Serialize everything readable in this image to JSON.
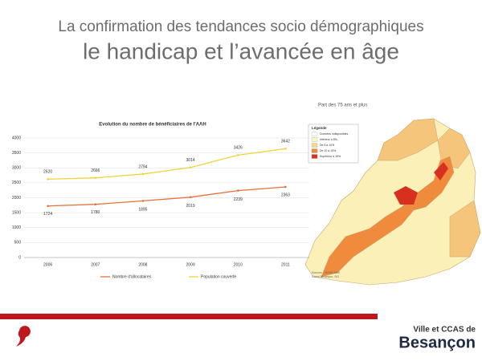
{
  "header": {
    "title": "La confirmation des tendances socio démographiques",
    "subtitle": "le handicap et l’avancée en âge"
  },
  "chart_data": {
    "type": "line",
    "title": "Evolution du nombre de bénéficiaires de l'AAH",
    "categories": [
      "2006",
      "2007",
      "2008",
      "2009",
      "2010",
      "2011"
    ],
    "series": [
      {
        "name": "Nombre d'allocataires",
        "color": "#e8703a",
        "values": [
          1724,
          1780,
          1895,
          2019,
          2239,
          2363
        ]
      },
      {
        "name": "Population couverte",
        "color": "#f2d33a",
        "values": [
          2620,
          2666,
          2794,
          3014,
          3426,
          3642
        ]
      }
    ],
    "ylim": [
      0,
      4000
    ],
    "yticks": [
      0,
      500,
      1000,
      1500,
      2000,
      2500,
      3000,
      3500,
      4000
    ],
    "grid": true
  },
  "map": {
    "title": "Part des 75 ans et plus",
    "legend_title": "Légende",
    "legend": [
      {
        "label": "Données indisponibles",
        "color": "#ffffff"
      },
      {
        "label": "Inférieur à 8%",
        "color": "#fbf4c4"
      },
      {
        "label": "De 8 à 10%",
        "color": "#f7d98a"
      },
      {
        "label": "De 10 à 15%",
        "color": "#f08a3c"
      },
      {
        "label": "Supérieur à 15%",
        "color": "#d7301f"
      }
    ],
    "source": [
      "Sources : INSEE 2006",
      "Grand Besançon, SIG"
    ]
  },
  "footer": {
    "line1": "Ville et CCAS de",
    "line2": "Besançon"
  }
}
